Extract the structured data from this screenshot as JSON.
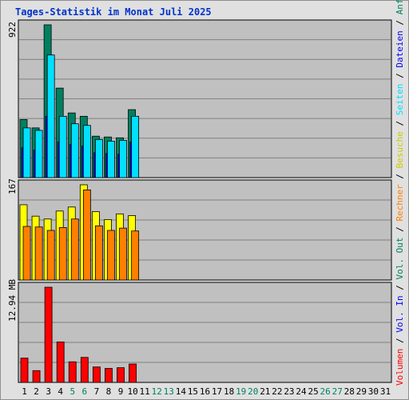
{
  "chart_data": {
    "type": "bar",
    "title": "Tages-Statistik im Monat Juli 2025",
    "categories": [
      "1",
      "2",
      "3",
      "4",
      "5",
      "6",
      "7",
      "8",
      "9",
      "10",
      "11",
      "12",
      "13",
      "14",
      "15",
      "16",
      "17",
      "18",
      "19",
      "20",
      "21",
      "22",
      "23",
      "24",
      "25",
      "26",
      "27",
      "28",
      "29",
      "30",
      "31"
    ],
    "weekend_days": [
      "5",
      "6",
      "12",
      "13",
      "19",
      "20",
      "26",
      "27"
    ],
    "grid": true,
    "panels": [
      {
        "ylabel": "922",
        "ymax": 922,
        "series": [
          {
            "name": "Anfragen",
            "color": "#008060",
            "values": [
              350,
              300,
              922,
              540,
              390,
              370,
              250,
              245,
              240,
              410,
              null,
              null,
              null,
              null,
              null,
              null,
              null,
              null,
              null,
              null,
              null,
              null,
              null,
              null,
              null,
              null,
              null,
              null,
              null,
              null,
              null
            ]
          },
          {
            "name": "Dateien",
            "color": "#0000ff",
            "values": [
              180,
              165,
              370,
              215,
              200,
              190,
              150,
              145,
              140,
              215,
              null,
              null,
              null,
              null,
              null,
              null,
              null,
              null,
              null,
              null,
              null,
              null,
              null,
              null,
              null,
              null,
              null,
              null,
              null,
              null,
              null
            ]
          },
          {
            "name": "Seiten",
            "color": "#00e0ff",
            "values": [
              300,
              285,
              740,
              370,
              325,
              315,
              230,
              220,
              225,
              370,
              null,
              null,
              null,
              null,
              null,
              null,
              null,
              null,
              null,
              null,
              null,
              null,
              null,
              null,
              null,
              null,
              null,
              null,
              null,
              null,
              null
            ]
          }
        ]
      },
      {
        "ylabel": "167",
        "ymax": 167,
        "series": [
          {
            "name": "Besuche",
            "color": "#ffff00",
            "values": [
              132,
              112,
              107,
              121,
              128,
              167,
              120,
              106,
              116,
              113,
              null,
              null,
              null,
              null,
              null,
              null,
              null,
              null,
              null,
              null,
              null,
              null,
              null,
              null,
              null,
              null,
              null,
              null,
              null,
              null,
              null
            ]
          },
          {
            "name": "Rechner",
            "color": "#ff8000",
            "values": [
              94,
              93,
              87,
              92,
              107,
              158,
              95,
              87,
              91,
              86,
              null,
              null,
              null,
              null,
              null,
              null,
              null,
              null,
              null,
              null,
              null,
              null,
              null,
              null,
              null,
              null,
              null,
              null,
              null,
              null,
              null
            ]
          }
        ]
      },
      {
        "ylabel": "12.94 MB",
        "ymax": 12.94,
        "series": [
          {
            "name": "Volumen",
            "color": "#ff0000",
            "values": [
              3.3,
              1.6,
              12.94,
              5.5,
              2.8,
              3.4,
              2.1,
              1.9,
              2.0,
              2.5,
              null,
              null,
              null,
              null,
              null,
              null,
              null,
              null,
              null,
              null,
              null,
              null,
              null,
              null,
              null,
              null,
              null,
              null,
              null,
              null,
              null
            ]
          }
        ]
      }
    ],
    "legend": [
      {
        "label": "Volumen",
        "color": "#ff0000"
      },
      {
        "label": " / ",
        "color": "#000000"
      },
      {
        "label": "Vol. In",
        "color": "#0000ff"
      },
      {
        "label": " / ",
        "color": "#000000"
      },
      {
        "label": "Vol. Out",
        "color": "#008060"
      },
      {
        "label": " / ",
        "color": "#000000"
      },
      {
        "label": "Rechner",
        "color": "#ff8000"
      },
      {
        "label": " / ",
        "color": "#000000"
      },
      {
        "label": "Besuche",
        "color": "#cccc00"
      },
      {
        "label": " / ",
        "color": "#000000"
      },
      {
        "label": "Seiten",
        "color": "#00e0ff"
      },
      {
        "label": " / ",
        "color": "#000000"
      },
      {
        "label": "Dateien",
        "color": "#0000ff"
      },
      {
        "label": " / ",
        "color": "#000000"
      },
      {
        "label": "Anfragen",
        "color": "#008060"
      }
    ]
  }
}
